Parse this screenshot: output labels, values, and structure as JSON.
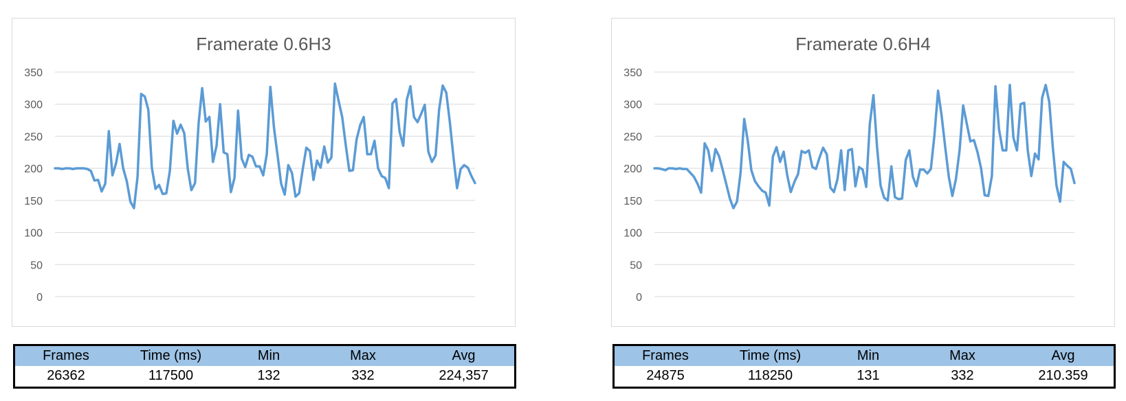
{
  "chart_data": [
    {
      "type": "line",
      "title": "Framerate 0.6H3",
      "xlabel": "",
      "ylabel": "",
      "ylim": [
        0,
        350
      ],
      "yticks": [
        0,
        50,
        100,
        150,
        200,
        250,
        300,
        350
      ],
      "grid": true,
      "legend": "none",
      "color": "#5b9bd5",
      "series": [
        {
          "values": [
            200,
            200,
            199,
            200,
            200,
            199,
            200,
            200,
            200,
            199,
            196,
            181,
            182,
            164,
            176,
            258,
            189,
            208,
            238,
            200,
            180,
            148,
            138,
            187,
            316,
            312,
            291,
            200,
            168,
            174,
            160,
            161,
            196,
            274,
            254,
            268,
            255,
            199,
            166,
            177,
            270,
            325,
            273,
            280,
            210,
            235,
            300,
            225,
            222,
            163,
            185,
            290,
            215,
            202,
            221,
            218,
            203,
            203,
            189,
            222,
            327,
            263,
            220,
            176,
            159,
            205,
            193,
            156,
            161,
            198,
            232,
            227,
            182,
            212,
            201,
            234,
            209,
            217,
            332,
            305,
            280,
            236,
            196,
            197,
            245,
            267,
            280,
            222,
            222,
            243,
            200,
            188,
            185,
            169,
            301,
            308,
            257,
            235,
            307,
            328,
            280,
            272,
            285,
            299,
            226,
            210,
            220,
            292,
            329,
            318,
            272,
            217,
            169,
            199,
            205,
            201,
            188,
            177
          ]
        }
      ],
      "table": {
        "headers": [
          "Frames",
          "Time (ms)",
          "Min",
          "Max",
          "Avg"
        ],
        "values": [
          "26362",
          "117500",
          "132",
          "332",
          "224,357"
        ]
      }
    },
    {
      "type": "line",
      "title": "Framerate 0.6H4",
      "xlabel": "",
      "ylabel": "",
      "ylim": [
        0,
        350
      ],
      "yticks": [
        0,
        50,
        100,
        150,
        200,
        250,
        300,
        350
      ],
      "grid": true,
      "legend": "none",
      "color": "#5b9bd5",
      "series": [
        {
          "values": [
            200,
            200,
            199,
            197,
            200,
            200,
            199,
            200,
            199,
            199,
            193,
            187,
            176,
            162,
            239,
            228,
            196,
            230,
            219,
            198,
            176,
            153,
            138,
            148,
            193,
            277,
            243,
            197,
            180,
            172,
            165,
            162,
            142,
            218,
            233,
            210,
            226,
            189,
            163,
            179,
            191,
            227,
            224,
            228,
            202,
            199,
            217,
            232,
            222,
            170,
            163,
            183,
            228,
            166,
            228,
            230,
            172,
            202,
            198,
            171,
            269,
            314,
            234,
            173,
            154,
            150,
            203,
            155,
            152,
            153,
            213,
            228,
            187,
            172,
            198,
            198,
            192,
            199,
            251,
            321,
            282,
            233,
            187,
            157,
            184,
            228,
            298,
            270,
            242,
            244,
            225,
            200,
            158,
            157,
            188,
            328,
            261,
            228,
            228,
            330,
            248,
            228,
            300,
            302,
            228,
            188,
            223,
            214,
            310,
            330,
            303,
            231,
            173,
            148,
            210,
            204,
            199,
            177
          ]
        }
      ],
      "table": {
        "headers": [
          "Frames",
          "Time (ms)",
          "Min",
          "Max",
          "Avg"
        ],
        "values": [
          "24875",
          "118250",
          "131",
          "332",
          "210.359"
        ]
      }
    }
  ]
}
